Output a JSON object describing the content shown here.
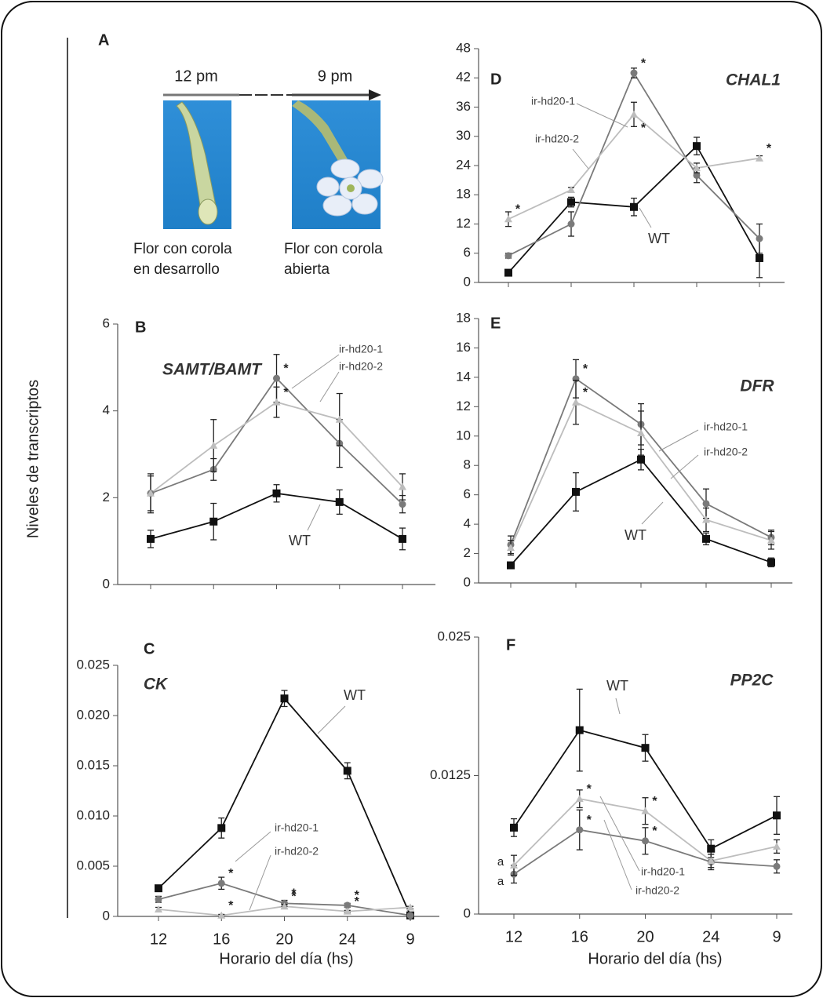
{
  "figure": {
    "y_axis_label": "Niveles de transcriptos"
  },
  "panel_a": {
    "label": "A",
    "time_start": "12 pm",
    "time_end": "9 pm",
    "caption_left": [
      "Flor con corola",
      "en desarrollo"
    ],
    "caption_right": [
      "Flor con corola",
      "abierta"
    ]
  },
  "chart_data": [
    {
      "type": "line",
      "panel_label": "B",
      "title": "SAMT/BAMT",
      "categories": [
        null,
        null,
        null,
        null,
        null
      ],
      "ylim": [
        0,
        6
      ],
      "yticks": [
        0,
        2,
        4,
        6
      ],
      "series": [
        {
          "name": "WT",
          "color": "#111111",
          "marker": "square",
          "values": [
            1.05,
            1.45,
            2.1,
            1.9,
            1.05
          ],
          "errors": [
            0.2,
            0.42,
            0.2,
            0.28,
            0.25
          ],
          "significance": [
            null,
            null,
            null,
            null,
            null
          ]
        },
        {
          "name": "ir-hd20-1",
          "color": "#7a7a7a",
          "marker": "circle",
          "values": [
            2.1,
            2.65,
            4.75,
            3.25,
            1.85
          ],
          "errors": [
            0.4,
            0.25,
            0.55,
            0.55,
            0.2
          ],
          "significance": [
            null,
            null,
            "*",
            null,
            null
          ]
        },
        {
          "name": "ir-hd20-2",
          "color": "#bdbdbd",
          "marker": "triangle",
          "values": [
            2.1,
            3.2,
            4.2,
            3.8,
            2.25
          ],
          "errors": [
            0.45,
            0.6,
            0.35,
            0.6,
            0.3
          ],
          "significance": [
            null,
            null,
            "*",
            null,
            null
          ]
        }
      ]
    },
    {
      "type": "line",
      "panel_label": "C",
      "title": "CK",
      "categories": [
        "12",
        "16",
        "20",
        "24",
        "9"
      ],
      "x_label": "Horario del día (hs)",
      "ylim": [
        0,
        0.025
      ],
      "yticks": [
        0,
        0.005,
        {
          "value": 0.01,
          "label": "0.010"
        },
        0.015,
        {
          "value": 0.02,
          "label": "0.020"
        },
        0.025
      ],
      "series": [
        {
          "name": "WT",
          "color": "#111111",
          "marker": "square",
          "values": [
            0.0028,
            0.0088,
            0.0217,
            0.0145,
            0.0001
          ],
          "errors": [
            0.0002,
            0.001,
            0.0008,
            0.0008,
            0.0002
          ],
          "significance": [
            null,
            null,
            null,
            null,
            null
          ]
        },
        {
          "name": "ir-hd20-1",
          "color": "#7a7a7a",
          "marker": "circle",
          "values": [
            0.0017,
            0.0033,
            0.0013,
            0.0011,
            0.0001
          ],
          "errors": [
            0.0003,
            0.0006,
            0.0003,
            0.0002,
            0.0001
          ],
          "significance": [
            null,
            "*",
            "*",
            "*",
            null
          ]
        },
        {
          "name": "ir-hd20-2",
          "color": "#bdbdbd",
          "marker": "triangle",
          "values": [
            0.0007,
            0.0001,
            0.001,
            0.0005,
            0.0009
          ],
          "errors": [
            0.0002,
            0.0001,
            0.0002,
            0.0001,
            0.0001
          ],
          "significance": [
            null,
            "*",
            "*",
            "*",
            null
          ]
        }
      ]
    },
    {
      "type": "line",
      "panel_label": "D",
      "title": "CHAL1",
      "categories": [
        null,
        null,
        null,
        null,
        null
      ],
      "ylim": [
        0,
        48
      ],
      "yticks": [
        0,
        6,
        12,
        18,
        24,
        30,
        36,
        42,
        48
      ],
      "series": [
        {
          "name": "WT",
          "color": "#111111",
          "marker": "square",
          "values": [
            2,
            16.5,
            15.5,
            28,
            5
          ],
          "errors": [
            0.5,
            1,
            1.8,
            1.8,
            4
          ],
          "significance": [
            null,
            null,
            null,
            null,
            null
          ]
        },
        {
          "name": "ir-hd20-1",
          "color": "#7a7a7a",
          "marker": "circle",
          "values": [
            5.5,
            12,
            43,
            22,
            9
          ],
          "errors": [
            0.5,
            2.5,
            1,
            1.5,
            3
          ],
          "significance": [
            null,
            null,
            "*",
            null,
            null
          ]
        },
        {
          "name": "ir-hd20-2",
          "color": "#bdbdbd",
          "marker": "triangle",
          "values": [
            13,
            19,
            34.5,
            23.5,
            25.5
          ],
          "errors": [
            1.5,
            0.5,
            2.5,
            1,
            0.5
          ],
          "significance": [
            "*",
            null,
            "*",
            null,
            "*"
          ]
        }
      ]
    },
    {
      "type": "line",
      "panel_label": "E",
      "title": "DFR",
      "categories": [
        null,
        null,
        null,
        null,
        null
      ],
      "ylim": [
        0,
        18
      ],
      "yticks": [
        0,
        2,
        4,
        6,
        8,
        10,
        12,
        14,
        16,
        18
      ],
      "series": [
        {
          "name": "WT",
          "color": "#111111",
          "marker": "square",
          "values": [
            1.2,
            6.2,
            8.4,
            3,
            1.4
          ],
          "errors": [
            0.1,
            1.3,
            0.7,
            0.4,
            0.3
          ],
          "significance": [
            null,
            null,
            null,
            null,
            null
          ]
        },
        {
          "name": "ir-hd20-1",
          "color": "#7a7a7a",
          "marker": "circle",
          "values": [
            2.6,
            13.9,
            10.8,
            5.4,
            3.1
          ],
          "errors": [
            0.6,
            1.3,
            1.4,
            1,
            0.5
          ],
          "significance": [
            null,
            "*",
            null,
            null,
            null
          ]
        },
        {
          "name": "ir-hd20-2",
          "color": "#bdbdbd",
          "marker": "triangle",
          "values": [
            2.4,
            12.3,
            10.2,
            4.3,
            2.9
          ],
          "errors": [
            0.5,
            1.5,
            1.5,
            0.8,
            0.6
          ],
          "significance": [
            null,
            "*",
            null,
            null,
            null
          ]
        }
      ]
    },
    {
      "type": "line",
      "panel_label": "F",
      "title": "PP2C",
      "categories": [
        "12",
        "16",
        "20",
        "24",
        "9"
      ],
      "x_label": "Horario del día (hs)",
      "ylim": [
        0,
        0.025
      ],
      "yticks": [
        0,
        0.0125,
        0.025
      ],
      "series": [
        {
          "name": "WT",
          "color": "#111111",
          "marker": "square",
          "values": [
            0.0078,
            0.0166,
            0.015,
            0.0059,
            0.0089
          ],
          "errors": [
            0.0008,
            0.0037,
            0.0012,
            0.0008,
            0.0017
          ],
          "significance": [
            null,
            null,
            null,
            null,
            null
          ]
        },
        {
          "name": "ir-hd20-1",
          "color": "#7a7a7a",
          "marker": "circle",
          "values": [
            0.0036,
            0.0076,
            0.0066,
            0.0047,
            0.0043
          ],
          "errors": [
            0.0008,
            0.0018,
            0.0012,
            0.0007,
            0.0006
          ],
          "significance": [
            "a",
            "*",
            "*",
            null,
            null
          ]
        },
        {
          "name": "ir-hd20-2",
          "color": "#bdbdbd",
          "marker": "triangle",
          "values": [
            0.0044,
            0.0104,
            0.0093,
            0.0048,
            0.0061
          ],
          "errors": [
            0.0009,
            0.0008,
            0.0012,
            0.0006,
            0.0006
          ],
          "significance": [
            "a",
            "*",
            "*",
            null,
            null
          ]
        }
      ]
    }
  ]
}
